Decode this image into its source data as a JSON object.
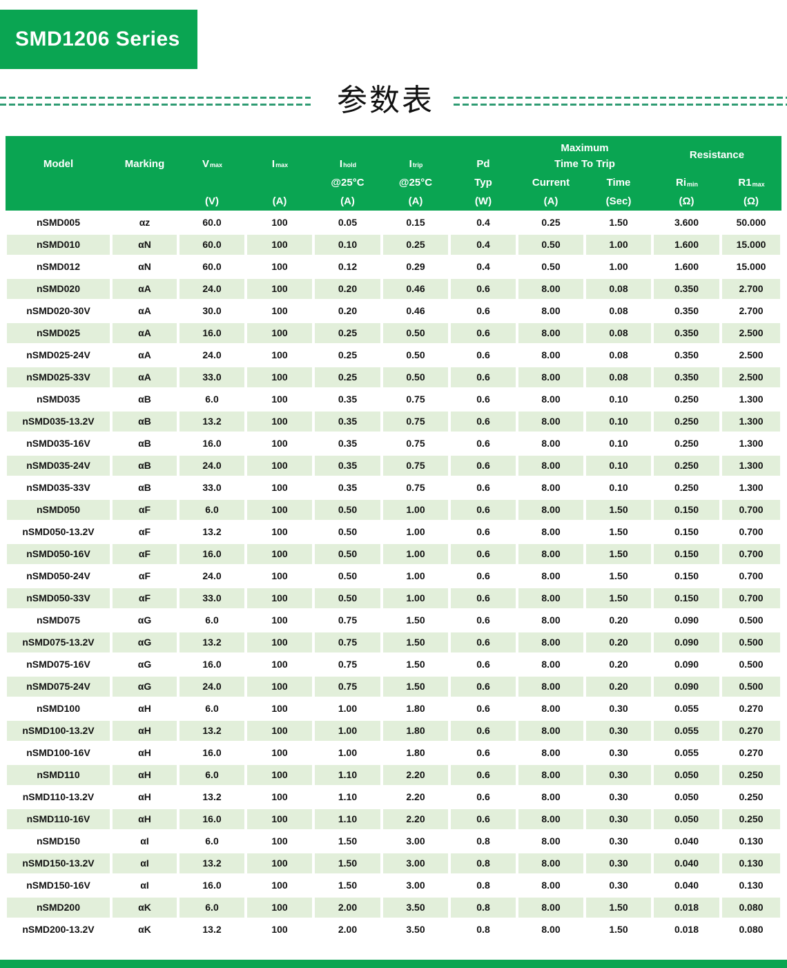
{
  "page": {
    "banner_title": "SMD1206 Series",
    "section_title": "参数表"
  },
  "colors": {
    "brand_green": "#0AA552",
    "row_green": "#E2EFDA",
    "divider_green": "#2E9B72"
  },
  "table": {
    "header": {
      "model": "Model",
      "marking": "Marking",
      "vmax": {
        "base": "V",
        "sub": "max",
        "unit": "(V)"
      },
      "imax": {
        "base": "I",
        "sub": "max",
        "unit": "(A)"
      },
      "ihold": {
        "base": "I",
        "sub": "hold",
        "cond": "@25°C",
        "unit": "(A)"
      },
      "itrip": {
        "base": "I",
        "sub": "trip",
        "cond": "@25°C",
        "unit": "(A)"
      },
      "pd": {
        "label": "Pd",
        "typ": "Typ",
        "unit": "(W)"
      },
      "trip_group": {
        "line1": "Maximum",
        "line2": "Time To Trip"
      },
      "current": {
        "label": "Current",
        "unit": "(A)"
      },
      "time": {
        "label": "Time",
        "unit": "(Sec)"
      },
      "resistance_group": "Resistance",
      "rimin": {
        "base": "Ri",
        "sub": "min",
        "unit": "(Ω)"
      },
      "r1max": {
        "base": "R1",
        "sub": "max",
        "unit": "(Ω)"
      }
    },
    "rows": [
      [
        "nSMD005",
        "αz",
        "60.0",
        "100",
        "0.05",
        "0.15",
        "0.4",
        "0.25",
        "1.50",
        "3.600",
        "50.000"
      ],
      [
        "nSMD010",
        "αN",
        "60.0",
        "100",
        "0.10",
        "0.25",
        "0.4",
        "0.50",
        "1.00",
        "1.600",
        "15.000"
      ],
      [
        "nSMD012",
        "αN",
        "60.0",
        "100",
        "0.12",
        "0.29",
        "0.4",
        "0.50",
        "1.00",
        "1.600",
        "15.000"
      ],
      [
        "nSMD020",
        "αA",
        "24.0",
        "100",
        "0.20",
        "0.46",
        "0.6",
        "8.00",
        "0.08",
        "0.350",
        "2.700"
      ],
      [
        "nSMD020-30V",
        "αA",
        "30.0",
        "100",
        "0.20",
        "0.46",
        "0.6",
        "8.00",
        "0.08",
        "0.350",
        "2.700"
      ],
      [
        "nSMD025",
        "αA",
        "16.0",
        "100",
        "0.25",
        "0.50",
        "0.6",
        "8.00",
        "0.08",
        "0.350",
        "2.500"
      ],
      [
        "nSMD025-24V",
        "αA",
        "24.0",
        "100",
        "0.25",
        "0.50",
        "0.6",
        "8.00",
        "0.08",
        "0.350",
        "2.500"
      ],
      [
        "nSMD025-33V",
        "αA",
        "33.0",
        "100",
        "0.25",
        "0.50",
        "0.6",
        "8.00",
        "0.08",
        "0.350",
        "2.500"
      ],
      [
        "nSMD035",
        "αB",
        "6.0",
        "100",
        "0.35",
        "0.75",
        "0.6",
        "8.00",
        "0.10",
        "0.250",
        "1.300"
      ],
      [
        "nSMD035-13.2V",
        "αB",
        "13.2",
        "100",
        "0.35",
        "0.75",
        "0.6",
        "8.00",
        "0.10",
        "0.250",
        "1.300"
      ],
      [
        "nSMD035-16V",
        "αB",
        "16.0",
        "100",
        "0.35",
        "0.75",
        "0.6",
        "8.00",
        "0.10",
        "0.250",
        "1.300"
      ],
      [
        "nSMD035-24V",
        "αB",
        "24.0",
        "100",
        "0.35",
        "0.75",
        "0.6",
        "8.00",
        "0.10",
        "0.250",
        "1.300"
      ],
      [
        "nSMD035-33V",
        "αB",
        "33.0",
        "100",
        "0.35",
        "0.75",
        "0.6",
        "8.00",
        "0.10",
        "0.250",
        "1.300"
      ],
      [
        "nSMD050",
        "αF",
        "6.0",
        "100",
        "0.50",
        "1.00",
        "0.6",
        "8.00",
        "1.50",
        "0.150",
        "0.700"
      ],
      [
        "nSMD050-13.2V",
        "αF",
        "13.2",
        "100",
        "0.50",
        "1.00",
        "0.6",
        "8.00",
        "1.50",
        "0.150",
        "0.700"
      ],
      [
        "nSMD050-16V",
        "αF",
        "16.0",
        "100",
        "0.50",
        "1.00",
        "0.6",
        "8.00",
        "1.50",
        "0.150",
        "0.700"
      ],
      [
        "nSMD050-24V",
        "αF",
        "24.0",
        "100",
        "0.50",
        "1.00",
        "0.6",
        "8.00",
        "1.50",
        "0.150",
        "0.700"
      ],
      [
        "nSMD050-33V",
        "αF",
        "33.0",
        "100",
        "0.50",
        "1.00",
        "0.6",
        "8.00",
        "1.50",
        "0.150",
        "0.700"
      ],
      [
        "nSMD075",
        "αG",
        "6.0",
        "100",
        "0.75",
        "1.50",
        "0.6",
        "8.00",
        "0.20",
        "0.090",
        "0.500"
      ],
      [
        "nSMD075-13.2V",
        "αG",
        "13.2",
        "100",
        "0.75",
        "1.50",
        "0.6",
        "8.00",
        "0.20",
        "0.090",
        "0.500"
      ],
      [
        "nSMD075-16V",
        "αG",
        "16.0",
        "100",
        "0.75",
        "1.50",
        "0.6",
        "8.00",
        "0.20",
        "0.090",
        "0.500"
      ],
      [
        "nSMD075-24V",
        "αG",
        "24.0",
        "100",
        "0.75",
        "1.50",
        "0.6",
        "8.00",
        "0.20",
        "0.090",
        "0.500"
      ],
      [
        "nSMD100",
        "αH",
        "6.0",
        "100",
        "1.00",
        "1.80",
        "0.6",
        "8.00",
        "0.30",
        "0.055",
        "0.270"
      ],
      [
        "nSMD100-13.2V",
        "αH",
        "13.2",
        "100",
        "1.00",
        "1.80",
        "0.6",
        "8.00",
        "0.30",
        "0.055",
        "0.270"
      ],
      [
        "nSMD100-16V",
        "αH",
        "16.0",
        "100",
        "1.00",
        "1.80",
        "0.6",
        "8.00",
        "0.30",
        "0.055",
        "0.270"
      ],
      [
        "nSMD110",
        "αH",
        "6.0",
        "100",
        "1.10",
        "2.20",
        "0.6",
        "8.00",
        "0.30",
        "0.050",
        "0.250"
      ],
      [
        "nSMD110-13.2V",
        "αH",
        "13.2",
        "100",
        "1.10",
        "2.20",
        "0.6",
        "8.00",
        "0.30",
        "0.050",
        "0.250"
      ],
      [
        "nSMD110-16V",
        "αH",
        "16.0",
        "100",
        "1.10",
        "2.20",
        "0.6",
        "8.00",
        "0.30",
        "0.050",
        "0.250"
      ],
      [
        "nSMD150",
        "αI",
        "6.0",
        "100",
        "1.50",
        "3.00",
        "0.8",
        "8.00",
        "0.30",
        "0.040",
        "0.130"
      ],
      [
        "nSMD150-13.2V",
        "αI",
        "13.2",
        "100",
        "1.50",
        "3.00",
        "0.8",
        "8.00",
        "0.30",
        "0.040",
        "0.130"
      ],
      [
        "nSMD150-16V",
        "αI",
        "16.0",
        "100",
        "1.50",
        "3.00",
        "0.8",
        "8.00",
        "0.30",
        "0.040",
        "0.130"
      ],
      [
        "nSMD200",
        "αK",
        "6.0",
        "100",
        "2.00",
        "3.50",
        "0.8",
        "8.00",
        "1.50",
        "0.018",
        "0.080"
      ],
      [
        "nSMD200-13.2V",
        "αK",
        "13.2",
        "100",
        "2.00",
        "3.50",
        "0.8",
        "8.00",
        "1.50",
        "0.018",
        "0.080"
      ]
    ]
  }
}
